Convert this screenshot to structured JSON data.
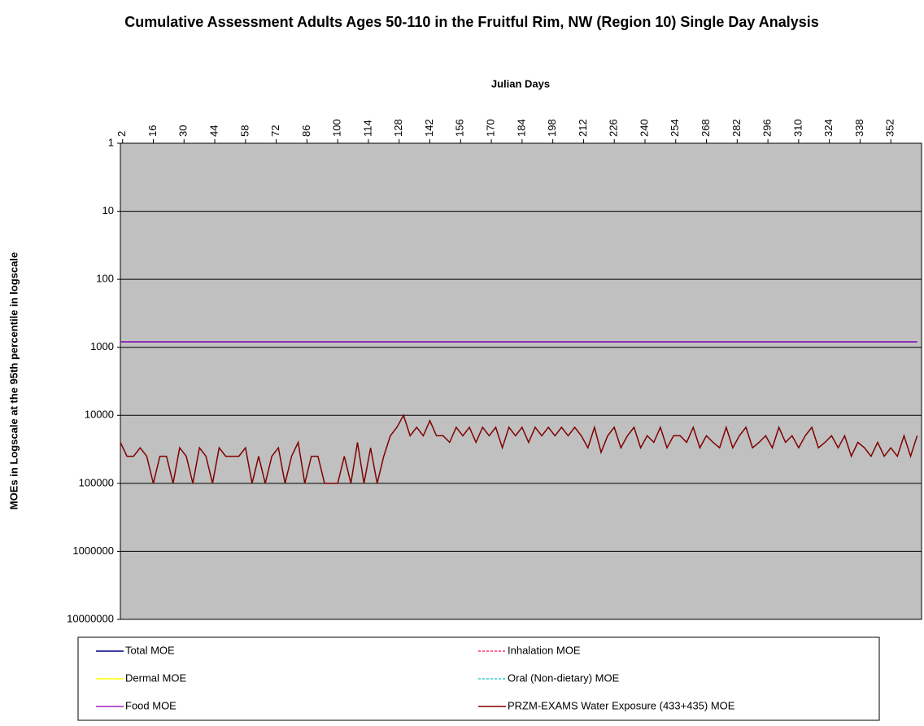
{
  "chart_data": {
    "type": "line",
    "title": "Cumulative Assessment Adults Ages 50-110 in the Fruitful Rim, NW (Region 10) Single Day Analysis",
    "x_label": "Julian Days",
    "y_label": "MOEs in Logscale at the 95th percentile in logscale",
    "xlim": [
      1,
      366
    ],
    "xticks": [
      2,
      16,
      30,
      44,
      58,
      72,
      86,
      100,
      114,
      128,
      142,
      156,
      170,
      184,
      198,
      212,
      226,
      240,
      254,
      268,
      282,
      296,
      310,
      324,
      338,
      352
    ],
    "ylim": [
      1,
      10000000
    ],
    "yticks": [
      1,
      10,
      100,
      1000,
      10000,
      100000,
      1000000,
      10000000
    ],
    "y_log": true,
    "y_reversed": true,
    "x_axis_position": "top",
    "grid": true,
    "legend_position": "bottom",
    "x": [
      1,
      4,
      7,
      10,
      13,
      16,
      19,
      22,
      25,
      28,
      31,
      34,
      37,
      40,
      43,
      46,
      49,
      52,
      55,
      58,
      61,
      64,
      67,
      70,
      73,
      76,
      79,
      82,
      85,
      88,
      91,
      94,
      97,
      100,
      103,
      106,
      109,
      112,
      115,
      118,
      121,
      124,
      127,
      130,
      133,
      136,
      139,
      142,
      145,
      148,
      151,
      154,
      157,
      160,
      163,
      166,
      169,
      172,
      175,
      178,
      181,
      184,
      187,
      190,
      193,
      196,
      199,
      202,
      205,
      208,
      211,
      214,
      217,
      220,
      223,
      226,
      229,
      232,
      235,
      238,
      241,
      244,
      247,
      250,
      253,
      256,
      259,
      262,
      265,
      268,
      271,
      274,
      277,
      280,
      283,
      286,
      289,
      292,
      295,
      298,
      301,
      304,
      307,
      310,
      313,
      316,
      319,
      322,
      325,
      328,
      331,
      334,
      337,
      340,
      343,
      346,
      349,
      352,
      355,
      358,
      361,
      364
    ],
    "series": [
      {
        "name": "Total MOE",
        "color": "#000080",
        "values": [
          830,
          830,
          830,
          830,
          830,
          830,
          830,
          830,
          830,
          830,
          830,
          830,
          830,
          830,
          830,
          830,
          830,
          830,
          830,
          830,
          830,
          830,
          830,
          830,
          830,
          830,
          830,
          830,
          830,
          830,
          830,
          830,
          830,
          830,
          830,
          830,
          830,
          830,
          830,
          830,
          830,
          830,
          830,
          830,
          830,
          830,
          830,
          830,
          830,
          830,
          830,
          830,
          830,
          830,
          830,
          830,
          830,
          830,
          830,
          830,
          830,
          830,
          830,
          830,
          830,
          830,
          830,
          830,
          830,
          830,
          830,
          830,
          830,
          830,
          830,
          830,
          830,
          830,
          830,
          830,
          830,
          830,
          830,
          830,
          830,
          830,
          830,
          830,
          830,
          830,
          830,
          830,
          830,
          830,
          830,
          830,
          830,
          830,
          830,
          830,
          830,
          830,
          830,
          830,
          830,
          830,
          830,
          830,
          830,
          830,
          830,
          830,
          830,
          830,
          830,
          830,
          830,
          830,
          830,
          830,
          830,
          830
        ]
      },
      {
        "name": "Inhalation MOE",
        "color": "#ff3366",
        "dashed": true,
        "values": [
          null,
          null,
          null,
          null,
          null,
          null,
          null,
          null,
          null,
          null,
          null,
          null,
          null,
          null,
          null,
          null,
          null,
          null,
          null,
          null,
          null,
          null,
          null,
          null,
          null,
          null,
          null,
          null,
          null,
          null,
          null,
          null,
          null,
          null,
          null,
          null,
          null,
          null,
          null,
          null,
          null,
          null,
          null,
          null,
          null,
          null,
          null,
          null,
          null,
          null,
          null,
          null,
          null,
          null,
          null,
          null,
          null,
          null,
          null,
          null,
          null,
          null,
          null,
          null,
          null,
          null,
          null,
          null,
          null,
          null,
          null,
          null,
          null,
          null,
          null,
          null,
          null,
          null,
          null,
          null,
          null,
          null,
          null,
          null,
          null,
          null,
          null,
          null,
          null,
          null,
          null,
          null,
          null,
          null,
          null,
          null,
          null,
          null,
          null,
          null,
          null,
          null,
          null,
          null,
          null,
          null,
          null,
          null,
          null,
          null,
          null,
          null,
          null,
          null,
          null,
          null,
          null,
          null,
          null,
          null,
          null,
          null
        ]
      },
      {
        "name": "Dermal MOE",
        "color": "#ffff00",
        "values": [
          null,
          null,
          null,
          null,
          null,
          null,
          null,
          null,
          null,
          null,
          null,
          null,
          null,
          null,
          null,
          null,
          null,
          null,
          null,
          null,
          null,
          null,
          null,
          null,
          null,
          null,
          null,
          null,
          null,
          null,
          null,
          null,
          null,
          null,
          null,
          null,
          null,
          null,
          null,
          null,
          null,
          null,
          null,
          null,
          null,
          null,
          null,
          null,
          null,
          null,
          null,
          null,
          null,
          null,
          null,
          null,
          null,
          null,
          null,
          null,
          null,
          null,
          null,
          null,
          null,
          null,
          null,
          null,
          null,
          null,
          null,
          null,
          null,
          null,
          null,
          null,
          null,
          null,
          null,
          null,
          null,
          null,
          null,
          null,
          null,
          null,
          null,
          null,
          null,
          null,
          null,
          null,
          null,
          null,
          null,
          null,
          null,
          null,
          null,
          null,
          null,
          null,
          null,
          null,
          null,
          null,
          null,
          null,
          null,
          null,
          null,
          null,
          null,
          null,
          null,
          null,
          null,
          null,
          null,
          null,
          null,
          null
        ]
      },
      {
        "name": "Oral (Non-dietary) MOE",
        "color": "#33cccc",
        "dashed": true,
        "values": [
          null,
          null,
          null,
          null,
          null,
          null,
          null,
          null,
          null,
          null,
          null,
          null,
          null,
          null,
          null,
          null,
          null,
          null,
          null,
          null,
          null,
          null,
          null,
          null,
          null,
          null,
          null,
          null,
          null,
          null,
          null,
          null,
          null,
          null,
          null,
          null,
          null,
          null,
          null,
          null,
          null,
          null,
          null,
          null,
          null,
          null,
          null,
          null,
          null,
          null,
          null,
          null,
          null,
          null,
          null,
          null,
          null,
          null,
          null,
          null,
          null,
          null,
          null,
          null,
          null,
          null,
          null,
          null,
          null,
          null,
          null,
          null,
          null,
          null,
          null,
          null,
          null,
          null,
          null,
          null,
          null,
          null,
          null,
          null,
          null,
          null,
          null,
          null,
          null,
          null,
          null,
          null,
          null,
          null,
          null,
          null,
          null,
          null,
          null,
          null,
          null,
          null,
          null,
          null,
          null,
          null,
          null,
          null,
          null,
          null,
          null,
          null,
          null,
          null,
          null,
          null,
          null,
          null,
          null,
          null,
          null,
          null
        ]
      },
      {
        "name": "Food MOE",
        "color": "#a020c0",
        "values": [
          830,
          830,
          830,
          830,
          830,
          830,
          830,
          830,
          830,
          830,
          830,
          830,
          830,
          830,
          830,
          830,
          830,
          830,
          830,
          830,
          830,
          830,
          830,
          830,
          830,
          830,
          830,
          830,
          830,
          830,
          830,
          830,
          830,
          830,
          830,
          830,
          830,
          830,
          830,
          830,
          830,
          830,
          830,
          830,
          830,
          830,
          830,
          830,
          830,
          830,
          830,
          830,
          830,
          830,
          830,
          830,
          830,
          830,
          830,
          830,
          830,
          830,
          830,
          830,
          830,
          830,
          830,
          830,
          830,
          830,
          830,
          830,
          830,
          830,
          830,
          830,
          830,
          830,
          830,
          830,
          830,
          830,
          830,
          830,
          830,
          830,
          830,
          830,
          830,
          830,
          830,
          830,
          830,
          830,
          830,
          830,
          830,
          830,
          830,
          830,
          830,
          830,
          830,
          830,
          830,
          830,
          830,
          830,
          830,
          830,
          830,
          830,
          830,
          830,
          830,
          830,
          830,
          830,
          830,
          830,
          830,
          830
        ]
      },
      {
        "name": "PRZM-EXAMS Water Exposure (433+435) MOE",
        "color": "#800000",
        "values": [
          25000,
          40000,
          40000,
          30000,
          40000,
          100000,
          40000,
          40000,
          100000,
          30000,
          40000,
          100000,
          30000,
          40000,
          100000,
          30000,
          40000,
          40000,
          40000,
          30000,
          100000,
          40000,
          100000,
          40000,
          30000,
          100000,
          40000,
          25000,
          100000,
          40000,
          40000,
          100000,
          100000,
          100000,
          40000,
          100000,
          25000,
          100000,
          30000,
          100000,
          40000,
          20000,
          15000,
          10000,
          20000,
          15000,
          20000,
          12000,
          20000,
          20000,
          25000,
          15000,
          20000,
          15000,
          25000,
          15000,
          20000,
          15000,
          30000,
          15000,
          20000,
          15000,
          25000,
          15000,
          20000,
          15000,
          20000,
          15000,
          20000,
          15000,
          20000,
          30000,
          15000,
          35000,
          20000,
          15000,
          30000,
          20000,
          15000,
          30000,
          20000,
          25000,
          15000,
          30000,
          20000,
          20000,
          25000,
          15000,
          30000,
          20000,
          25000,
          30000,
          15000,
          30000,
          20000,
          15000,
          30000,
          25000,
          20000,
          30000,
          15000,
          25000,
          20000,
          30000,
          20000,
          15000,
          30000,
          25000,
          20000,
          30000,
          20000,
          40000,
          25000,
          30000,
          40000,
          25000,
          40000,
          30000,
          40000,
          20000,
          40000,
          20000
        ]
      }
    ]
  }
}
